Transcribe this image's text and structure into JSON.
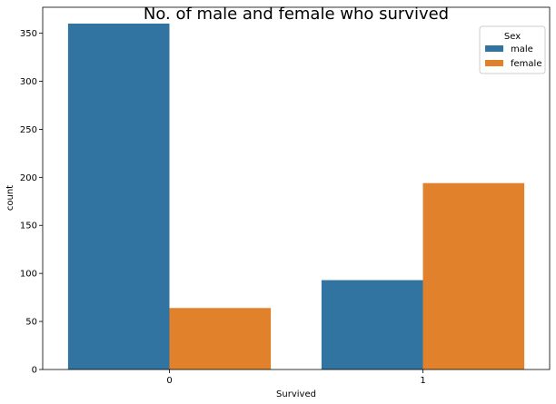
{
  "chart_data": {
    "type": "bar",
    "title": "No. of male and female who survived",
    "xlabel": "Survived",
    "ylabel": "count",
    "categories": [
      "0",
      "1"
    ],
    "series": [
      {
        "name": "male",
        "values": [
          360,
          93
        ],
        "color": "#3274a1"
      },
      {
        "name": "female",
        "values": [
          64,
          194
        ],
        "color": "#e1812c"
      }
    ],
    "ylim": [
      0,
      377
    ],
    "yticks": [
      0,
      50,
      100,
      150,
      200,
      250,
      300,
      350
    ],
    "legend": {
      "title": "Sex",
      "placement": "top-right"
    },
    "grid": false
  }
}
